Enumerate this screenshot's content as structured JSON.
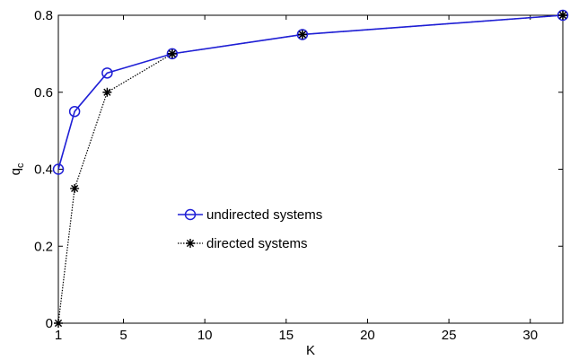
{
  "chart_data": {
    "type": "line",
    "xlabel": "K",
    "ylabel": "q",
    "ylabel_subscript": "c",
    "xlim": [
      1,
      32
    ],
    "ylim": [
      0,
      0.8
    ],
    "xticks": [
      1,
      5,
      10,
      15,
      20,
      25,
      30
    ],
    "xtick_labels": [
      "1",
      "5",
      "10",
      "15",
      "20",
      "25",
      "30"
    ],
    "yticks": [
      0,
      0.2,
      0.4,
      0.6,
      0.8
    ],
    "ytick_labels": [
      "0",
      "0.2",
      "0.4",
      "0.6",
      "0.8"
    ],
    "grid": false,
    "legend": "center-left",
    "series": [
      {
        "name": "undirected systems",
        "color": "#1f1fd6",
        "marker": "circle",
        "x": [
          1,
          2,
          4,
          8,
          16,
          32
        ],
        "y": [
          0.4,
          0.55,
          0.65,
          0.7,
          0.75,
          0.8
        ]
      },
      {
        "name": "directed systems",
        "color": "#000000",
        "marker": "star",
        "linestyle": "dotted",
        "x": [
          1,
          2,
          4,
          8,
          16,
          32
        ],
        "y": [
          0.0,
          0.35,
          0.6,
          0.7,
          0.75,
          0.8
        ]
      }
    ]
  }
}
